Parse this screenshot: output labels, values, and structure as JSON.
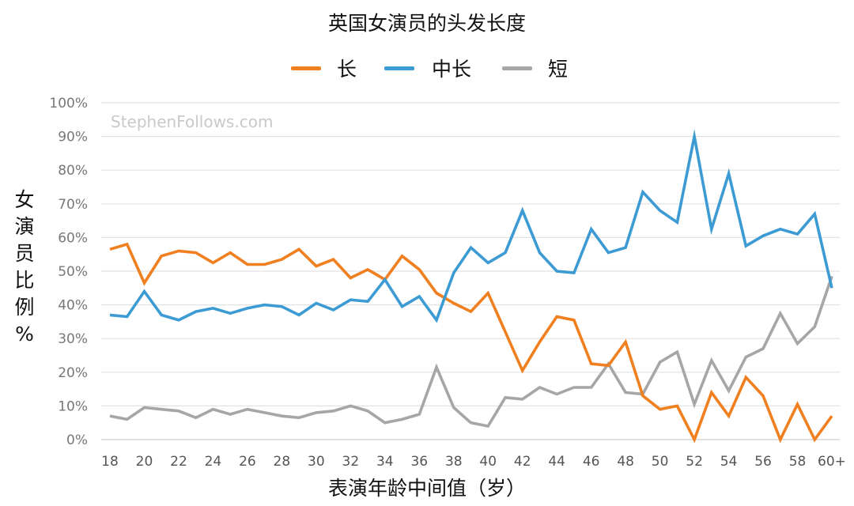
{
  "chart_data": {
    "type": "line",
    "title": "英国女演员的头发长度",
    "xlabel": "表演年龄中间值（岁）",
    "ylabel": "女演员比例%",
    "watermark": "StephenFollows.com",
    "ylim": [
      0,
      100
    ],
    "y_ticks": [
      "0%",
      "10%",
      "20%",
      "30%",
      "40%",
      "50%",
      "60%",
      "70%",
      "80%",
      "90%",
      "100%"
    ],
    "x_tick_labels": [
      "18",
      "20",
      "22",
      "24",
      "26",
      "28",
      "30",
      "32",
      "34",
      "36",
      "38",
      "40",
      "42",
      "44",
      "46",
      "48",
      "50",
      "52",
      "54",
      "56",
      "58",
      "60+"
    ],
    "grid": true,
    "legend_position": "top",
    "categories": [
      "18",
      "19",
      "20",
      "21",
      "22",
      "23",
      "24",
      "25",
      "26",
      "27",
      "28",
      "29",
      "30",
      "31",
      "32",
      "33",
      "34",
      "35",
      "36",
      "37",
      "38",
      "39",
      "40",
      "41",
      "42",
      "43",
      "44",
      "45",
      "46",
      "47",
      "48",
      "49",
      "50",
      "51",
      "52",
      "53",
      "54",
      "55",
      "56",
      "57",
      "58",
      "59",
      "60+"
    ],
    "series": [
      {
        "name": "长",
        "color": "#f07f1f",
        "values": [
          56.5,
          58,
          46.5,
          54.5,
          56,
          55.5,
          52.5,
          55.5,
          52,
          52,
          53.5,
          56.5,
          51.5,
          53.5,
          48,
          50.5,
          47.5,
          54.5,
          50.5,
          43.5,
          40.5,
          38,
          43.5,
          32,
          20.5,
          29,
          36.5,
          35.5,
          22.5,
          22,
          29,
          13,
          9,
          10,
          0,
          14,
          7,
          18.5,
          13,
          0,
          10.5,
          0,
          7
        ]
      },
      {
        "name": "中长",
        "color": "#3d9bd3",
        "values": [
          37,
          36.5,
          44,
          37,
          35.5,
          38,
          39,
          37.5,
          39,
          40,
          39.5,
          37,
          40.5,
          38.5,
          41.5,
          41,
          47.5,
          39.5,
          42.5,
          35.5,
          49.5,
          57,
          52.5,
          55.5,
          68,
          55.5,
          50,
          49.5,
          62.5,
          55.5,
          57,
          73.5,
          68,
          64.5,
          90,
          62.5,
          79,
          57.5,
          60.5,
          62.5,
          61,
          67,
          45
        ]
      },
      {
        "name": "短",
        "color": "#a6a6a6",
        "values": [
          7,
          6,
          9.5,
          9,
          8.5,
          6.5,
          9,
          7.5,
          9,
          8,
          7,
          6.5,
          8,
          8.5,
          10,
          8.5,
          5,
          6,
          7.5,
          21.5,
          9.5,
          5,
          4,
          12.5,
          12,
          15.5,
          13.5,
          15.5,
          15.5,
          22.5,
          14,
          13.5,
          23,
          26,
          10.5,
          23.5,
          14.5,
          24.5,
          27,
          37.5,
          28.5,
          33.5,
          48.5
        ]
      }
    ]
  }
}
